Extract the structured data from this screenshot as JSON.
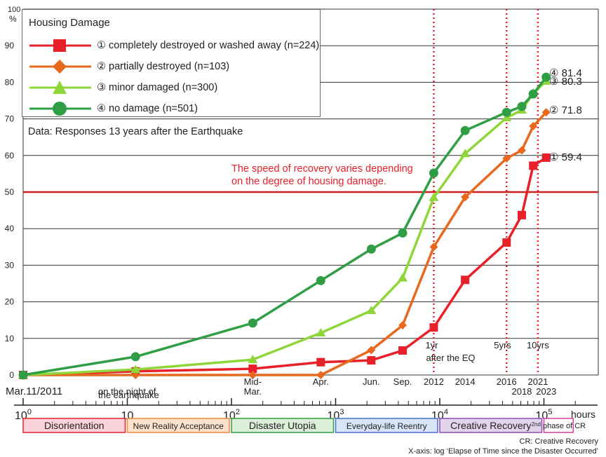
{
  "chart_data": {
    "type": "line",
    "title": "",
    "xlabel": "hours",
    "ylabel": "%",
    "x_scale": "log",
    "xlim": [
      1,
      200000
    ],
    "ylim": [
      0,
      100
    ],
    "y_ticks": [
      0,
      10,
      20,
      30,
      40,
      50,
      60,
      70,
      80,
      90
    ],
    "y_top_tick": "100",
    "x_decade_ticks": [
      {
        "base": "10",
        "exp": "0",
        "value": 1
      },
      {
        "base": "10",
        "exp": "",
        "value": 10
      },
      {
        "base": "10",
        "exp": "2",
        "value": 100
      },
      {
        "base": "10",
        "exp": "3",
        "value": 1000
      },
      {
        "base": "10",
        "exp": "4",
        "value": 10000
      },
      {
        "base": "10",
        "exp": "5",
        "value": 100000
      }
    ],
    "x_unit_label": "hours",
    "grid": "horizontal",
    "legend_title": "Housing Damage",
    "legend_position": "top-left",
    "series": [
      {
        "key": "s1",
        "name": "① completely destroyed or washed away (n=224)",
        "color": "#e8202a",
        "marker": "square",
        "final_label": "① 59.4",
        "x": [
          1,
          12,
          160,
          720,
          2200,
          4400,
          8760,
          17520,
          43800,
          61320,
          78840,
          105120
        ],
        "y": [
          0,
          1,
          1.7,
          3.5,
          4,
          6.7,
          13,
          26,
          36.2,
          43.7,
          57.2,
          59.4
        ]
      },
      {
        "key": "s2",
        "name": "② partially destroyed (n=103)",
        "color": "#e8681e",
        "marker": "diamond",
        "final_label": "② 71.8",
        "x": [
          1,
          12,
          160,
          720,
          2200,
          4400,
          8760,
          17520,
          43800,
          61320,
          78840,
          105120
        ],
        "y": [
          0,
          0,
          0,
          0,
          6.8,
          13.6,
          35,
          48.6,
          59.2,
          61.4,
          68,
          71.8
        ]
      },
      {
        "key": "s3",
        "name": "③ minor damaged (n=300)",
        "color": "#8ed63a",
        "marker": "triangle",
        "final_label": "③ 80.3",
        "x": [
          1,
          12,
          160,
          720,
          2200,
          4400,
          8760,
          17520,
          43800,
          61320,
          78840,
          105120
        ],
        "y": [
          0,
          1.5,
          4.2,
          11.5,
          17.6,
          26.5,
          48.5,
          60.5,
          70.3,
          72.4,
          77,
          80.3
        ]
      },
      {
        "key": "s4",
        "name": "④ no damage (n=501)",
        "color": "#2f9e44",
        "marker": "circle",
        "final_label": "④ 81.4",
        "x": [
          1,
          12,
          160,
          720,
          2200,
          4400,
          8760,
          17520,
          43800,
          61320,
          78840,
          105120
        ],
        "y": [
          0,
          5,
          14.2,
          25.8,
          34.4,
          38.8,
          55.2,
          66.8,
          71.8,
          73.4,
          76.8,
          81.4
        ]
      }
    ],
    "reference_line": {
      "y": 50,
      "color": "#cc1f1f"
    },
    "vertical_markers": [
      {
        "x": 8760,
        "label": "1yr",
        "label2": "after the EQ"
      },
      {
        "x": 43800,
        "label": "5yrs",
        "label2": ""
      },
      {
        "x": 87600,
        "label": "10yrs",
        "label2": ""
      }
    ],
    "time_labels": [
      {
        "text": "Mar.11/2011",
        "x": 1,
        "row": 1
      },
      {
        "text": "on the night of",
        "x": 12,
        "row": 1
      },
      {
        "text": "the earthquake",
        "x": 12,
        "row": 2
      },
      {
        "text": "Mid-",
        "x": 160,
        "row": 0
      },
      {
        "text": "Mar.",
        "x": 160,
        "row": 1
      },
      {
        "text": "Apr.",
        "x": 720,
        "row": 0
      },
      {
        "text": "Jun.",
        "x": 2200,
        "row": 0
      },
      {
        "text": "Sep.",
        "x": 4400,
        "row": 0
      },
      {
        "text": "2012",
        "x": 8760,
        "row": 0
      },
      {
        "text": "2014",
        "x": 17520,
        "row": 0
      },
      {
        "text": "2016",
        "x": 43800,
        "row": 0
      },
      {
        "text": "2018",
        "x": 61320,
        "row": 1
      },
      {
        "text": "2021",
        "x": 87600,
        "row": 0
      },
      {
        "text": "2023",
        "x": 105120,
        "row": 1
      }
    ],
    "phases": [
      {
        "label": "Disorientation",
        "x0": 1,
        "x1": 10,
        "color": "#e8202a",
        "fill": "#fbd3dc"
      },
      {
        "label": "New Reality Acceptance",
        "x0": 10,
        "x1": 100,
        "color": "#f08a3c",
        "fill": "#fde3cc"
      },
      {
        "label": "Disaster Utopia",
        "x0": 100,
        "x1": 1000,
        "color": "#2f9e44",
        "fill": "#dcefd9"
      },
      {
        "label": "Everyday-life Reentry",
        "x0": 1000,
        "x1": 10000,
        "color": "#4a6fd0",
        "fill": "#d8e4f7"
      },
      {
        "label": "Creative Recovery",
        "x0": 10000,
        "x1": 100000,
        "color": "#8a4fb0",
        "fill": "#e3d3ec"
      },
      {
        "label": "2nd phase of CR",
        "x0": 100000,
        "x1": 200000,
        "color": "#d0409a",
        "fill": "#ffffff",
        "super": "2nd",
        "rest": " phase of CR"
      }
    ],
    "footnotes": [
      "CR: Creative Recovery",
      "X-axis: log ‘Elapse of Time since the Disaster Occurred’"
    ]
  },
  "notes": {
    "data_source": "Data: Responses 13 years after the Earthquake",
    "annotation_line1": "The speed of recovery varies depending",
    "annotation_line2": "on the degree of housing damage."
  }
}
